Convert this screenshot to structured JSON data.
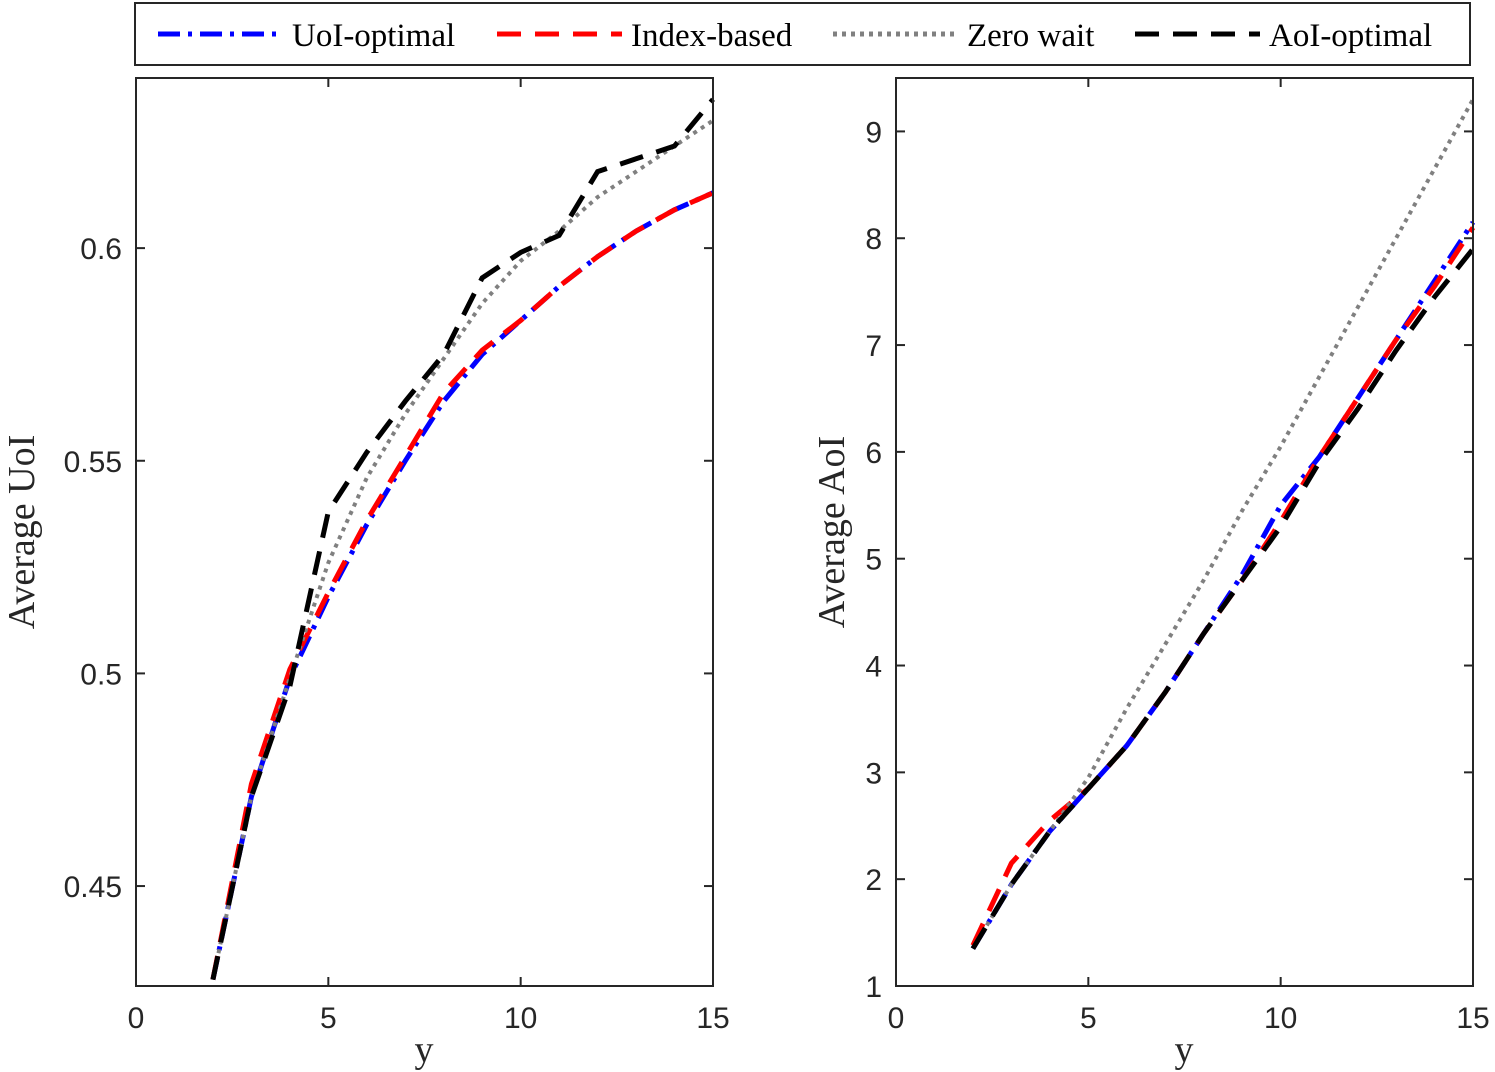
{
  "legend": [
    {
      "name": "UoI-optimal",
      "color": "#0000ff",
      "dash": "dashdot"
    },
    {
      "name": "Index-based",
      "color": "#ff0000",
      "dash": "dashed"
    },
    {
      "name": "Zero wait",
      "color": "#808080",
      "dash": "dotted"
    },
    {
      "name": "AoI-optimal",
      "color": "#000000",
      "dash": "dashed"
    }
  ],
  "chart_data": [
    {
      "type": "line",
      "title": "",
      "xlabel": "y",
      "ylabel": "Average UoI",
      "xlim": [
        0,
        15
      ],
      "ylim": [
        0.4265,
        0.64
      ],
      "xticks": [
        0,
        5,
        10,
        15
      ],
      "yticks": [
        0.45,
        0.5,
        0.55,
        0.6
      ],
      "ytick_labels": [
        "0.45",
        "0.5",
        "0.55",
        "0.6"
      ],
      "x": [
        2,
        3,
        4,
        5,
        6,
        7,
        8,
        9,
        10,
        11,
        12,
        13,
        14,
        15
      ],
      "series": [
        {
          "name": "UoI-optimal",
          "values": [
            0.428,
            0.471,
            0.499,
            0.518,
            0.535,
            0.55,
            0.564,
            0.575,
            0.583,
            0.591,
            0.598,
            0.604,
            0.609,
            0.613
          ]
        },
        {
          "name": "Index-based",
          "values": [
            0.428,
            0.474,
            0.501,
            0.519,
            0.536,
            0.551,
            0.566,
            0.576,
            0.583,
            0.591,
            0.598,
            0.604,
            0.609,
            0.613
          ]
        },
        {
          "name": "Zero wait",
          "values": [
            0.428,
            0.471,
            0.499,
            0.526,
            0.546,
            0.561,
            0.574,
            0.587,
            0.597,
            0.604,
            0.612,
            0.618,
            0.624,
            0.63
          ]
        },
        {
          "name": "AoI-optimal",
          "values": [
            0.428,
            0.471,
            0.497,
            0.538,
            0.552,
            0.564,
            0.575,
            0.593,
            0.599,
            0.603,
            0.618,
            0.621,
            0.624,
            0.635
          ]
        }
      ]
    },
    {
      "type": "line",
      "title": "",
      "xlabel": "y",
      "ylabel": "Average AoI",
      "xlim": [
        0,
        15
      ],
      "ylim": [
        1,
        9.5
      ],
      "xticks": [
        0,
        5,
        10,
        15
      ],
      "yticks": [
        1,
        2,
        3,
        4,
        5,
        6,
        7,
        8,
        9
      ],
      "ytick_labels": [
        "1",
        "2",
        "3",
        "4",
        "5",
        "6",
        "7",
        "8",
        "9"
      ],
      "x": [
        2,
        3,
        4,
        5,
        6,
        7,
        8,
        9,
        10,
        11,
        12,
        13,
        14,
        15
      ],
      "series": [
        {
          "name": "UoI-optimal",
          "values": [
            1.35,
            1.95,
            2.45,
            2.85,
            3.25,
            3.75,
            4.3,
            4.85,
            5.5,
            5.95,
            6.5,
            7.05,
            7.6,
            8.15
          ]
        },
        {
          "name": "Index-based",
          "values": [
            1.38,
            2.15,
            2.55,
            2.85,
            3.25,
            3.75,
            4.3,
            4.8,
            5.35,
            5.95,
            6.5,
            7.05,
            7.55,
            8.1
          ]
        },
        {
          "name": "Zero wait",
          "values": [
            1.35,
            1.95,
            2.45,
            2.95,
            3.6,
            4.2,
            4.8,
            5.45,
            6.05,
            6.7,
            7.35,
            8.0,
            8.65,
            9.3
          ]
        },
        {
          "name": "AoI-optimal",
          "values": [
            1.35,
            1.95,
            2.45,
            2.85,
            3.25,
            3.75,
            4.3,
            4.8,
            5.3,
            5.9,
            6.4,
            6.95,
            7.45,
            7.9
          ]
        }
      ]
    }
  ]
}
